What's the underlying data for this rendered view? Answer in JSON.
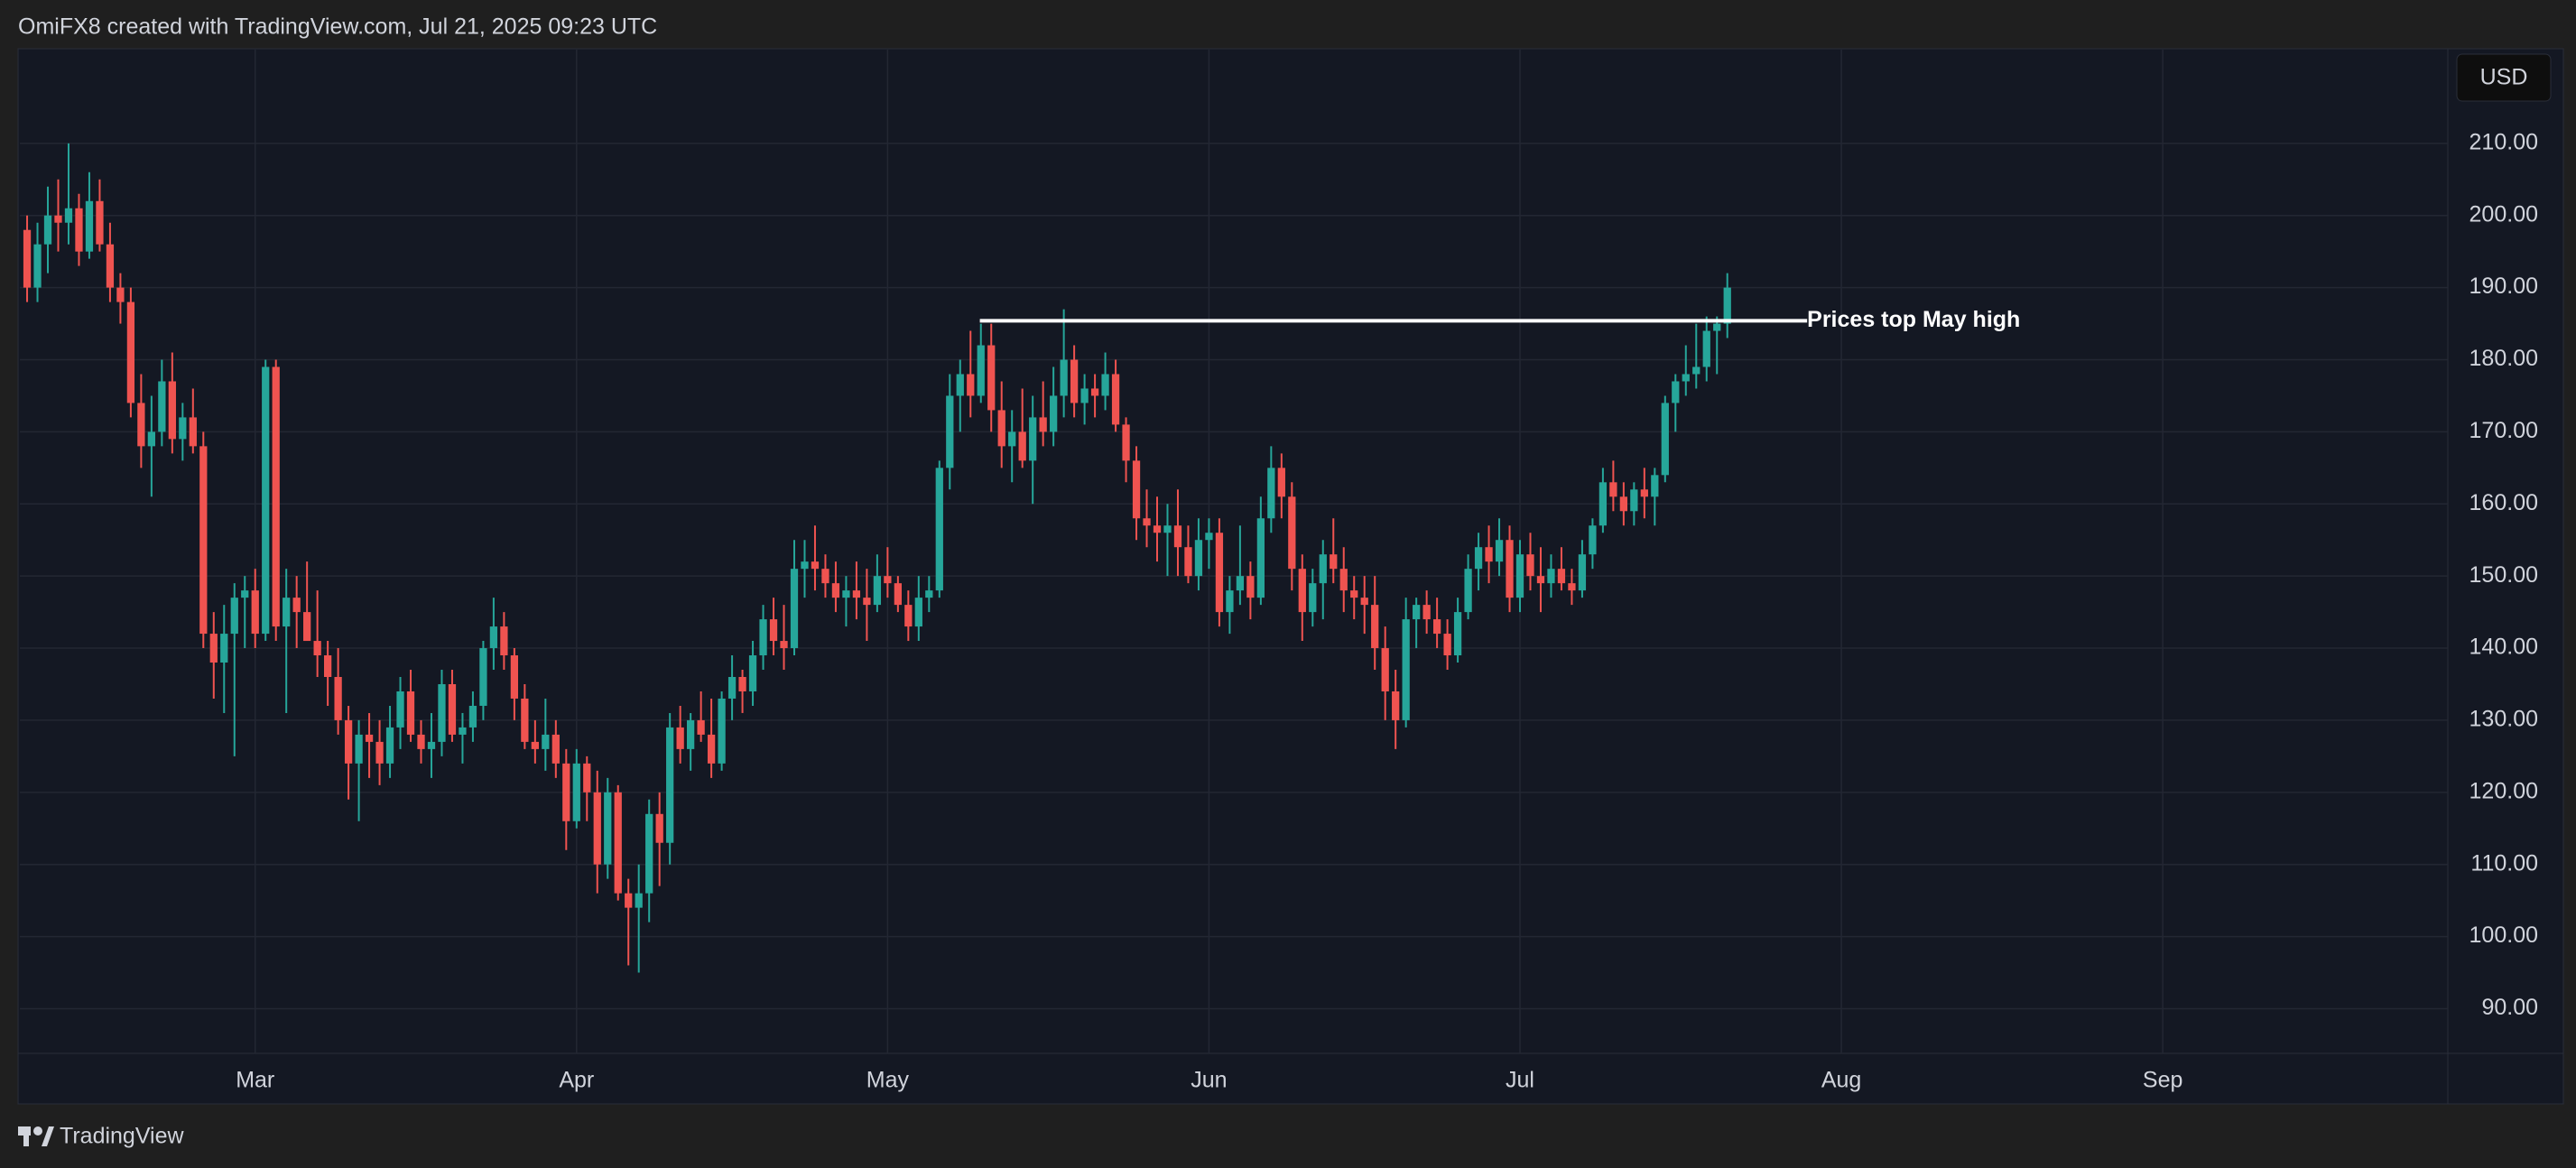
{
  "header": {
    "text": "OmiFX8 created with TradingView.com, Jul 21, 2025 09:23 UTC"
  },
  "footer": {
    "brand": "TradingView"
  },
  "chart_data": {
    "type": "candlestick",
    "currency": "USD",
    "up_color": "#26a69a",
    "down_color": "#ef5350",
    "grid": true,
    "annotation": {
      "label": "Prices top May high",
      "value": 185.4
    },
    "xlim": [
      -0.7,
      233.5
    ],
    "xticks": [
      {
        "value": 22,
        "label": "Mar"
      },
      {
        "value": 53,
        "label": "Apr"
      },
      {
        "value": 83,
        "label": "May"
      },
      {
        "value": 114,
        "label": "Jun"
      },
      {
        "value": 144,
        "label": "Jul"
      },
      {
        "value": 175,
        "label": "Aug"
      },
      {
        "value": 206,
        "label": "Sep"
      }
    ],
    "ylim": [
      83.8,
      223
    ],
    "yticks": [
      {
        "value": 90,
        "label": "90.00"
      },
      {
        "value": 100,
        "label": "100.00"
      },
      {
        "value": 110,
        "label": "110.00"
      },
      {
        "value": 120,
        "label": "120.00"
      },
      {
        "value": 130,
        "label": "130.00"
      },
      {
        "value": 140,
        "label": "140.00"
      },
      {
        "value": 150,
        "label": "150.00"
      },
      {
        "value": 160,
        "label": "160.00"
      },
      {
        "value": 170,
        "label": "170.00"
      },
      {
        "value": 180,
        "label": "180.00"
      },
      {
        "value": 190,
        "label": "190.00"
      },
      {
        "value": 200,
        "label": "200.00"
      },
      {
        "value": 210,
        "label": "210.00"
      }
    ],
    "ohlc": [
      [
        198,
        200,
        188,
        190
      ],
      [
        190,
        199,
        188,
        196
      ],
      [
        196,
        204,
        192,
        200
      ],
      [
        200,
        205,
        195,
        199
      ],
      [
        199,
        210,
        196,
        201
      ],
      [
        201,
        203,
        193,
        195
      ],
      [
        195,
        206,
        194,
        202
      ],
      [
        202,
        205,
        195,
        196
      ],
      [
        196,
        199,
        188,
        190
      ],
      [
        190,
        192,
        185,
        188
      ],
      [
        188,
        190,
        172,
        174
      ],
      [
        174,
        178,
        165,
        168
      ],
      [
        168,
        175,
        161,
        170
      ],
      [
        170,
        180,
        168,
        177
      ],
      [
        177,
        181,
        167,
        169
      ],
      [
        169,
        174,
        166,
        172
      ],
      [
        172,
        176,
        167,
        168
      ],
      [
        168,
        170,
        140,
        142
      ],
      [
        142,
        145,
        133,
        138
      ],
      [
        138,
        146,
        131,
        142
      ],
      [
        142,
        149,
        125,
        147
      ],
      [
        147,
        150,
        140,
        148
      ],
      [
        148,
        151,
        140,
        142
      ],
      [
        142,
        180,
        141,
        179
      ],
      [
        179,
        180,
        141,
        143
      ],
      [
        143,
        151,
        131,
        147
      ],
      [
        147,
        150,
        140,
        145
      ],
      [
        145,
        152,
        141,
        141
      ],
      [
        141,
        148,
        136,
        139
      ],
      [
        139,
        141,
        132,
        136
      ],
      [
        136,
        140,
        128,
        130
      ],
      [
        130,
        132,
        119,
        124
      ],
      [
        124,
        130,
        116,
        128
      ],
      [
        128,
        131,
        122,
        127
      ],
      [
        127,
        130,
        121,
        124
      ],
      [
        124,
        132,
        122,
        129
      ],
      [
        129,
        136,
        126,
        134
      ],
      [
        134,
        137,
        127,
        128
      ],
      [
        128,
        130,
        124,
        126
      ],
      [
        126,
        131,
        122,
        127
      ],
      [
        127,
        137,
        125,
        135
      ],
      [
        135,
        137,
        127,
        128
      ],
      [
        128,
        131,
        124,
        129
      ],
      [
        129,
        134,
        127,
        132
      ],
      [
        132,
        141,
        130,
        140
      ],
      [
        140,
        147,
        137,
        143
      ],
      [
        143,
        145,
        137,
        139
      ],
      [
        139,
        140,
        130,
        133
      ],
      [
        133,
        135,
        126,
        127
      ],
      [
        127,
        130,
        124,
        126
      ],
      [
        126,
        133,
        123,
        128
      ],
      [
        128,
        130,
        122,
        124
      ],
      [
        124,
        126,
        112,
        116
      ],
      [
        116,
        126,
        115,
        124
      ],
      [
        124,
        125,
        116,
        120
      ],
      [
        120,
        123,
        106,
        110
      ],
      [
        110,
        122,
        108,
        120
      ],
      [
        120,
        121,
        105,
        106
      ],
      [
        106,
        108,
        96,
        104
      ],
      [
        104,
        110,
        95,
        106
      ],
      [
        106,
        119,
        102,
        117
      ],
      [
        117,
        120,
        107,
        113
      ],
      [
        113,
        131,
        110,
        129
      ],
      [
        129,
        132,
        124,
        126
      ],
      [
        126,
        131,
        123,
        130
      ],
      [
        130,
        134,
        127,
        128
      ],
      [
        128,
        133,
        122,
        124
      ],
      [
        124,
        134,
        123,
        133
      ],
      [
        133,
        139,
        130,
        136
      ],
      [
        136,
        137,
        131,
        134
      ],
      [
        134,
        141,
        132,
        139
      ],
      [
        139,
        146,
        137,
        144
      ],
      [
        144,
        147,
        139,
        141
      ],
      [
        141,
        146,
        137,
        140
      ],
      [
        140,
        155,
        139,
        151
      ],
      [
        151,
        155,
        147,
        152
      ],
      [
        152,
        157,
        148,
        151
      ],
      [
        151,
        153,
        147,
        149
      ],
      [
        149,
        152,
        145,
        147
      ],
      [
        147,
        150,
        143,
        148
      ],
      [
        148,
        152,
        144,
        147
      ],
      [
        147,
        151,
        141,
        146
      ],
      [
        146,
        153,
        145,
        150
      ],
      [
        150,
        154,
        147,
        149
      ],
      [
        149,
        150,
        145,
        146
      ],
      [
        146,
        148,
        141,
        143
      ],
      [
        143,
        150,
        141,
        147
      ],
      [
        147,
        150,
        145,
        148
      ],
      [
        148,
        166,
        147,
        165
      ],
      [
        165,
        178,
        162,
        175
      ],
      [
        175,
        180,
        170,
        178
      ],
      [
        178,
        184,
        172,
        175
      ],
      [
        175,
        185,
        174,
        182
      ],
      [
        182,
        185,
        170,
        173
      ],
      [
        173,
        177,
        165,
        168
      ],
      [
        168,
        173,
        163,
        170
      ],
      [
        170,
        176,
        165,
        166
      ],
      [
        166,
        175,
        160,
        172
      ],
      [
        172,
        177,
        168,
        170
      ],
      [
        170,
        179,
        168,
        175
      ],
      [
        175,
        187,
        172,
        180
      ],
      [
        180,
        182,
        172,
        174
      ],
      [
        174,
        178,
        171,
        176
      ],
      [
        176,
        178,
        172,
        175
      ],
      [
        175,
        181,
        173,
        178
      ],
      [
        178,
        180,
        170,
        171
      ],
      [
        171,
        172,
        163,
        166
      ],
      [
        166,
        168,
        155,
        158
      ],
      [
        158,
        162,
        154,
        157
      ],
      [
        157,
        161,
        152,
        156
      ],
      [
        156,
        160,
        150,
        157
      ],
      [
        157,
        162,
        150,
        154
      ],
      [
        154,
        157,
        149,
        150
      ],
      [
        150,
        158,
        148,
        155
      ],
      [
        155,
        158,
        151,
        156
      ],
      [
        156,
        158,
        143,
        145
      ],
      [
        145,
        150,
        142,
        148
      ],
      [
        148,
        157,
        146,
        150
      ],
      [
        150,
        152,
        144,
        147
      ],
      [
        147,
        161,
        146,
        158
      ],
      [
        158,
        168,
        156,
        165
      ],
      [
        165,
        167,
        158,
        161
      ],
      [
        161,
        163,
        148,
        151
      ],
      [
        151,
        153,
        141,
        145
      ],
      [
        145,
        151,
        143,
        149
      ],
      [
        149,
        155,
        144,
        153
      ],
      [
        153,
        158,
        149,
        151
      ],
      [
        151,
        154,
        145,
        148
      ],
      [
        148,
        150,
        144,
        147
      ],
      [
        147,
        150,
        142,
        146
      ],
      [
        146,
        150,
        137,
        140
      ],
      [
        140,
        143,
        130,
        134
      ],
      [
        134,
        137,
        126,
        130
      ],
      [
        130,
        147,
        129,
        144
      ],
      [
        144,
        147,
        140,
        146
      ],
      [
        146,
        148,
        142,
        144
      ],
      [
        144,
        147,
        140,
        142
      ],
      [
        142,
        144,
        137,
        139
      ],
      [
        139,
        147,
        138,
        145
      ],
      [
        145,
        153,
        144,
        151
      ],
      [
        151,
        156,
        148,
        154
      ],
      [
        154,
        157,
        149,
        152
      ],
      [
        152,
        158,
        150,
        155
      ],
      [
        155,
        157,
        145,
        147
      ],
      [
        147,
        155,
        145,
        153
      ],
      [
        153,
        156,
        148,
        150
      ],
      [
        150,
        154,
        145,
        149
      ],
      [
        149,
        153,
        147,
        151
      ],
      [
        151,
        154,
        148,
        149
      ],
      [
        149,
        151,
        146,
        148
      ],
      [
        148,
        155,
        147,
        153
      ],
      [
        153,
        158,
        151,
        157
      ],
      [
        157,
        165,
        156,
        163
      ],
      [
        163,
        166,
        159,
        161
      ],
      [
        161,
        163,
        157,
        159
      ],
      [
        159,
        163,
        157,
        162
      ],
      [
        162,
        165,
        158,
        161
      ],
      [
        161,
        165,
        157,
        164
      ],
      [
        164,
        175,
        163,
        174
      ],
      [
        174,
        178,
        170,
        177
      ],
      [
        177,
        182,
        175,
        178
      ],
      [
        178,
        185,
        176,
        179
      ],
      [
        179,
        186,
        177,
        184
      ],
      [
        184,
        186,
        178,
        185
      ],
      [
        185,
        192,
        183,
        190
      ]
    ]
  }
}
